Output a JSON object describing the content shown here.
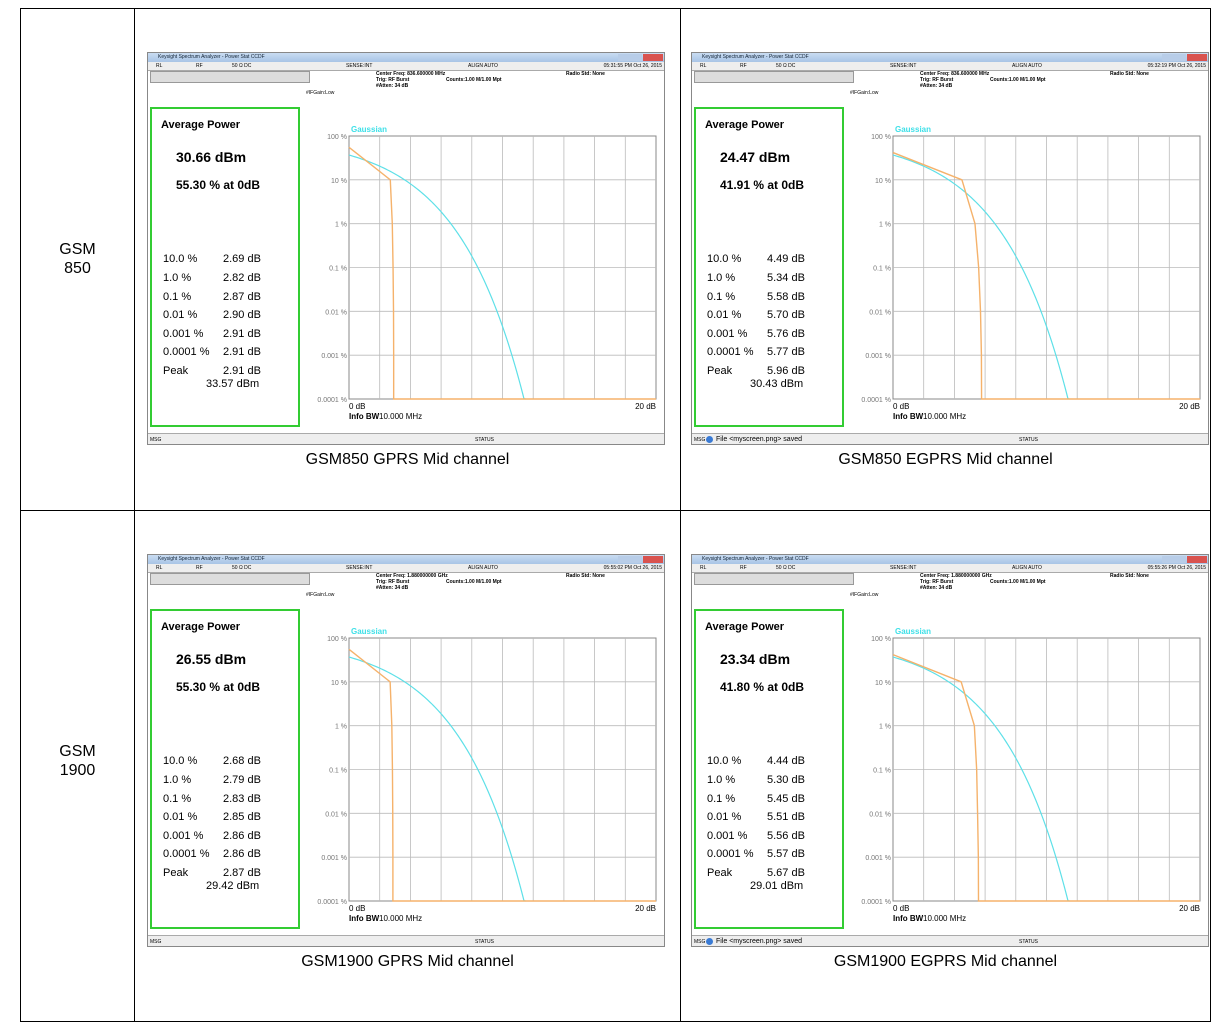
{
  "analyzer": {
    "window_title": "Keysight Spectrum Analyzer - Power Stat CCDF",
    "rl": "RL",
    "rf": "RF",
    "impedance": "50 Ω  DC",
    "sense": "SENSE:INT",
    "align": "ALIGN AUTO",
    "trig": "Trig: RF Burst",
    "atten": "#Atten: 34 dB",
    "counts": "Counts:1.00 M/1.00 Mpt",
    "radio_std": "Radio Std: None",
    "ifgain": "#IFGain:Low",
    "avg_title": "Average Power",
    "gaussian": "Gaussian",
    "stat_labels": [
      "10.0 %",
      "1.0 %",
      "0.1 %",
      "0.01 %",
      "0.001 %",
      "0.0001 %"
    ],
    "peak_label": "Peak",
    "y_labels": [
      "100 %",
      "10 %",
      "1 %",
      "0.1 %",
      "0.01 %",
      "0.001 %",
      "0.0001 %"
    ],
    "x_start": "0 dB",
    "x_end": "20 dB",
    "info_bw_label": "Info BW",
    "info_bw": "10.000 MHz",
    "msg": "MSG",
    "status": "STATUS"
  },
  "rows": [
    {
      "label": [
        "GSM",
        "850"
      ],
      "panels": [
        {
          "timestamp": "05:31:55 PM Oct 26, 2015",
          "center_freq": "Center Freq: 836.600000 MHz",
          "avg_power": "30.66 dBm",
          "at_0db": "55.30 % at 0dB",
          "stat_values": [
            "2.69 dB",
            "2.82 dB",
            "2.87 dB",
            "2.90 dB",
            "2.91 dB",
            "2.91 dB"
          ],
          "peak_value": "2.91 dB",
          "peak_dbm": "33.57 dBm",
          "caption": "GSM850 GPRS Mid channel"
        },
        {
          "timestamp": "05:32:19 PM Oct 26, 2015",
          "center_freq": "Center Freq: 836.600000 MHz",
          "avg_power": "24.47 dBm",
          "at_0db": "41.91 % at 0dB",
          "stat_values": [
            "4.49 dB",
            "5.34 dB",
            "5.58 dB",
            "5.70 dB",
            "5.76 dB",
            "5.77 dB"
          ],
          "peak_value": "5.96 dB",
          "peak_dbm": "30.43 dBm",
          "status_msg": "File <myscreen.png> saved",
          "caption": "GSM850 EGPRS Mid channel"
        }
      ]
    },
    {
      "label": [
        "GSM",
        "1900"
      ],
      "panels": [
        {
          "timestamp": "05:55:02 PM Oct 26, 2015",
          "center_freq": "Center Freq: 1.880000000 GHz",
          "avg_power": "26.55 dBm",
          "at_0db": "55.30 % at 0dB",
          "stat_values": [
            "2.68 dB",
            "2.79 dB",
            "2.83 dB",
            "2.85 dB",
            "2.86 dB",
            "2.86 dB"
          ],
          "peak_value": "2.87 dB",
          "peak_dbm": "29.42 dBm",
          "caption": "GSM1900 GPRS Mid channel"
        },
        {
          "timestamp": "05:55:26 PM Oct 26, 2015",
          "center_freq": "Center Freq: 1.880000000 GHz",
          "avg_power": "23.34 dBm",
          "at_0db": "41.80 % at 0dB",
          "stat_values": [
            "4.44 dB",
            "5.30 dB",
            "5.45 dB",
            "5.51 dB",
            "5.56 dB",
            "5.57 dB"
          ],
          "peak_value": "5.67 dB",
          "peak_dbm": "29.01 dBm",
          "status_msg": "File <myscreen.png> saved",
          "caption": "GSM1900 EGPRS Mid channel"
        }
      ]
    }
  ]
}
